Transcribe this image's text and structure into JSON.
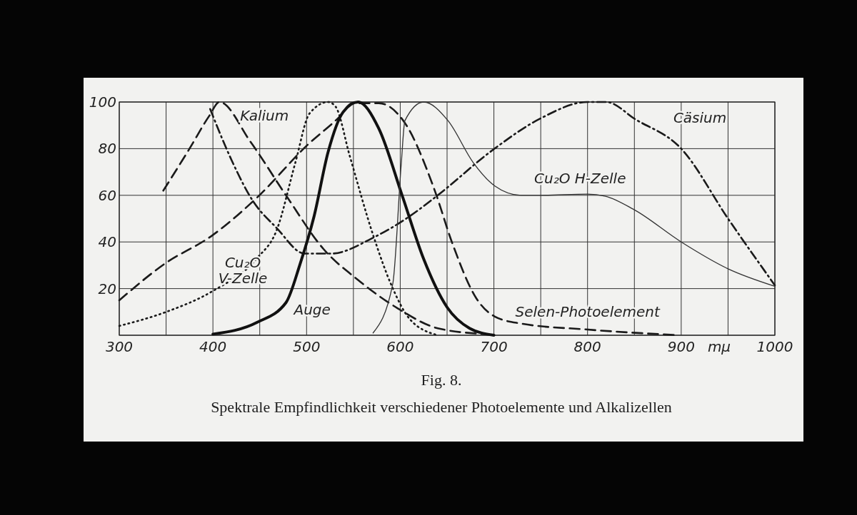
{
  "chart_data": {
    "type": "line",
    "title": "Fig. 8.",
    "subtitle": "Spektrale Empfindlichkeit verschiedener Photoelemente und Alkalizellen",
    "xlabel": "mμ",
    "xlim": [
      300,
      1000
    ],
    "ylim": [
      0,
      100
    ],
    "xticks": [
      300,
      {
        "value": 350,
        "label": null
      },
      400,
      {
        "value": 450,
        "label": null
      },
      500,
      {
        "value": 550,
        "label": null
      },
      600,
      {
        "value": 650,
        "label": null
      },
      700,
      {
        "value": 750,
        "label": null
      },
      800,
      {
        "value": 850,
        "label": null
      },
      900,
      {
        "value": 950,
        "label": null
      },
      1000
    ],
    "yticks": [
      {
        "value": 0,
        "label": null
      },
      20,
      40,
      60,
      80,
      100
    ],
    "grid": true,
    "marker": "none",
    "series": [
      {
        "name": "Kalium",
        "color": "#1a1a1a",
        "line_style": "dashed",
        "x": [
          347,
          375,
          396,
          407,
          440,
          478,
          518,
          554,
          597,
          640,
          691
        ],
        "values": [
          62,
          80,
          94,
          100,
          83,
          60,
          37,
          24,
          11.6,
          3,
          0.5
        ]
      },
      {
        "name": "Cäsium",
        "color": "#1a1a1a",
        "line_style": "dashdot",
        "x": [
          397,
          420,
          442,
          468,
          498,
          526,
          572,
          610,
          640,
          699,
          750,
          800,
          820,
          851,
          900,
          950,
          1000
        ],
        "values": [
          97,
          75,
          58,
          46,
          35,
          35,
          42,
          51,
          60,
          79.5,
          93,
          100,
          100,
          92.6,
          80,
          50,
          21.4
        ]
      },
      {
        "name": "Cu₂O\nV-Zelle",
        "color": "#1a1a1a",
        "line_style": "dotted",
        "x": [
          300,
          350,
          400,
          447,
          468,
          488,
          503,
          523,
          531,
          546,
          571,
          590,
          610,
          640
        ],
        "values": [
          4,
          10,
          19,
          33,
          45,
          74,
          95,
          100,
          98,
          77,
          43,
          22,
          7,
          0
        ]
      },
      {
        "name": "Selen-Photoelement",
        "color": "#1a1a1a",
        "line_style": "dashed",
        "x": [
          300,
          348,
          400,
          447,
          501,
          536,
          549,
          577,
          605,
          636,
          656,
          681,
          701,
          729,
          798,
          897
        ],
        "values": [
          15,
          30.5,
          43,
          59,
          81.6,
          94,
          99.5,
          99.5,
          91,
          63,
          39,
          16,
          8,
          5,
          2.5,
          0
        ]
      },
      {
        "name": "Auge",
        "color": "#111111",
        "line_style": "solid",
        "x": [
          400,
          447,
          478,
          493,
          508,
          523,
          539,
          555,
          577,
          602,
          625,
          650,
          674,
          700
        ],
        "values": [
          0.5,
          5.5,
          14,
          30.5,
          51,
          78.6,
          95.7,
          100,
          88.7,
          60,
          32.7,
          12,
          3,
          0
        ]
      },
      {
        "name": "Cu₂O H-Zelle",
        "color": "#333333",
        "line_style": "solid",
        "x": [
          571,
          592,
          601,
          605,
          625,
          651,
          678,
          701,
          729,
          750,
          800,
          819,
          849,
          900,
          950,
          1000
        ],
        "values": [
          1,
          22,
          73,
          92,
          100,
          92,
          74,
          64,
          60,
          60,
          60.5,
          59.6,
          54,
          40,
          28.5,
          21
        ]
      }
    ]
  }
}
